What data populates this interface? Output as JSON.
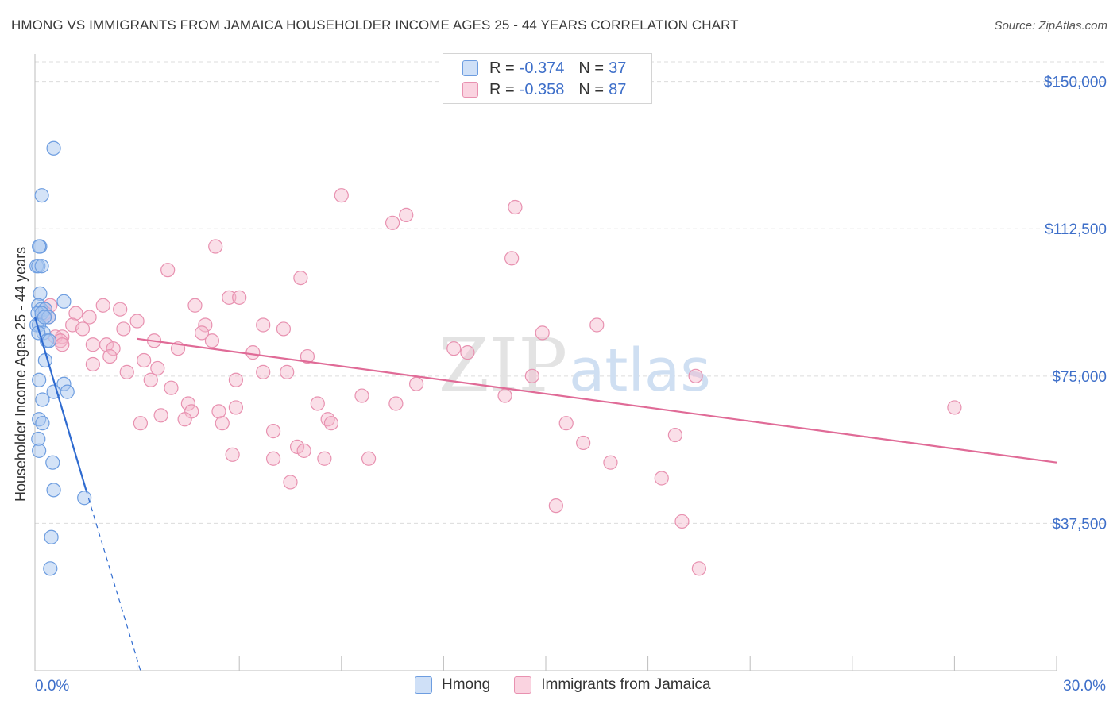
{
  "header": {
    "title": "HMONG VS IMMIGRANTS FROM JAMAICA HOUSEHOLDER INCOME AGES 25 - 44 YEARS CORRELATION CHART",
    "source": "Source: ZipAtlas.com"
  },
  "legend": {
    "rows": [
      {
        "r_label": "R =",
        "r_value": "-0.374",
        "n_label": "N =",
        "n_value": "37",
        "color": "#aac8f0"
      },
      {
        "r_label": "R =",
        "r_value": "-0.358",
        "n_label": "N =",
        "n_value": "87",
        "color": "#f5b8cc"
      }
    ],
    "bottom": [
      {
        "label": "Hmong",
        "color": "#aac8f0"
      },
      {
        "label": "Immigrants from Jamaica",
        "color": "#f5b8cc"
      }
    ]
  },
  "watermark": {
    "zip": "ZIP",
    "atlas": "atlas"
  },
  "colors": {
    "hmong_fill": "#aac8f0",
    "hmong_stroke": "#6d9de0",
    "hmong_line": "#2f6bd0",
    "jamaica_fill": "#f5b8cc",
    "jamaica_stroke": "#e891b0",
    "jamaica_line": "#e06b97",
    "axis_label": "#3e6fc9",
    "grid": "#dcdcdc"
  },
  "chart_data": {
    "type": "scatter",
    "title": "HMONG VS IMMIGRANTS FROM JAMAICA HOUSEHOLDER INCOME AGES 25 - 44 YEARS CORRELATION CHART",
    "xlabel": "",
    "ylabel": "Householder Income Ages 25 - 44 years",
    "xlim": [
      0,
      30
    ],
    "ylim": [
      0,
      157000
    ],
    "x_tick_labels": [
      {
        "value": 0,
        "label": "0.0%"
      },
      {
        "value": 30,
        "label": "30.0%"
      }
    ],
    "x_minor_ticks": [
      3,
      6,
      9,
      12,
      15,
      18,
      21,
      24,
      27,
      30
    ],
    "y_ticks": [
      {
        "value": 37500,
        "label": "$37,500"
      },
      {
        "value": 75000,
        "label": "$75,000"
      },
      {
        "value": 112500,
        "label": "$112,500"
      },
      {
        "value": 150000,
        "label": "$150,000"
      }
    ],
    "series": [
      {
        "name": "Hmong",
        "r": -0.374,
        "n": 37,
        "points": [
          [
            0.55,
            133000
          ],
          [
            0.2,
            121000
          ],
          [
            0.15,
            108000
          ],
          [
            0.12,
            108000
          ],
          [
            0.05,
            103000
          ],
          [
            0.1,
            103000
          ],
          [
            0.2,
            103000
          ],
          [
            0.15,
            96000
          ],
          [
            0.85,
            94000
          ],
          [
            0.1,
            93000
          ],
          [
            0.18,
            92000
          ],
          [
            0.3,
            92000
          ],
          [
            0.08,
            91000
          ],
          [
            0.2,
            91000
          ],
          [
            0.4,
            90000
          ],
          [
            0.05,
            88000
          ],
          [
            0.12,
            88000
          ],
          [
            0.25,
            86000
          ],
          [
            0.1,
            86000
          ],
          [
            0.35,
            84000
          ],
          [
            0.42,
            84000
          ],
          [
            0.3,
            79000
          ],
          [
            0.12,
            74000
          ],
          [
            0.85,
            73000
          ],
          [
            0.55,
            71000
          ],
          [
            0.95,
            71000
          ],
          [
            0.22,
            69000
          ],
          [
            0.12,
            64000
          ],
          [
            0.22,
            63000
          ],
          [
            0.1,
            59000
          ],
          [
            0.12,
            56000
          ],
          [
            0.52,
            53000
          ],
          [
            0.55,
            46000
          ],
          [
            1.45,
            44000
          ],
          [
            0.48,
            34000
          ],
          [
            0.45,
            26000
          ],
          [
            0.28,
            90000
          ]
        ],
        "trend": {
          "x0": 0.0,
          "y0": 90000,
          "x1": 1.5,
          "y1": 46000,
          "dash_x1": 3.1,
          "dash_y1": 0
        }
      },
      {
        "name": "Immigrants from Jamaica",
        "r": -0.358,
        "n": 87,
        "points": [
          [
            9.0,
            121000
          ],
          [
            14.1,
            118000
          ],
          [
            10.9,
            116000
          ],
          [
            10.5,
            114000
          ],
          [
            5.3,
            108000
          ],
          [
            14.0,
            105000
          ],
          [
            3.9,
            102000
          ],
          [
            7.8,
            100000
          ],
          [
            5.7,
            95000
          ],
          [
            6.0,
            95000
          ],
          [
            4.7,
            93000
          ],
          [
            2.0,
            93000
          ],
          [
            0.45,
            93000
          ],
          [
            0.3,
            92000
          ],
          [
            2.5,
            92000
          ],
          [
            1.2,
            91000
          ],
          [
            0.3,
            91000
          ],
          [
            0.4,
            90000
          ],
          [
            1.6,
            90000
          ],
          [
            3.0,
            89000
          ],
          [
            6.7,
            88000
          ],
          [
            5.0,
            88000
          ],
          [
            1.1,
            88000
          ],
          [
            1.4,
            87000
          ],
          [
            16.5,
            88000
          ],
          [
            7.3,
            87000
          ],
          [
            2.6,
            87000
          ],
          [
            14.9,
            86000
          ],
          [
            4.9,
            86000
          ],
          [
            0.6,
            85000
          ],
          [
            0.8,
            85000
          ],
          [
            5.2,
            84000
          ],
          [
            0.75,
            84000
          ],
          [
            3.5,
            84000
          ],
          [
            0.8,
            83000
          ],
          [
            2.1,
            83000
          ],
          [
            1.7,
            83000
          ],
          [
            4.2,
            82000
          ],
          [
            2.3,
            82000
          ],
          [
            12.3,
            82000
          ],
          [
            12.7,
            81000
          ],
          [
            6.4,
            81000
          ],
          [
            2.2,
            80000
          ],
          [
            8.0,
            80000
          ],
          [
            3.2,
            79000
          ],
          [
            1.7,
            78000
          ],
          [
            3.6,
            77000
          ],
          [
            7.4,
            76000
          ],
          [
            2.7,
            76000
          ],
          [
            6.7,
            76000
          ],
          [
            14.6,
            75000
          ],
          [
            19.4,
            75000
          ],
          [
            3.4,
            74000
          ],
          [
            5.9,
            74000
          ],
          [
            11.2,
            73000
          ],
          [
            4.0,
            72000
          ],
          [
            9.6,
            70000
          ],
          [
            13.8,
            70000
          ],
          [
            8.3,
            68000
          ],
          [
            4.5,
            68000
          ],
          [
            10.6,
            68000
          ],
          [
            5.9,
            67000
          ],
          [
            4.6,
            66000
          ],
          [
            5.4,
            66000
          ],
          [
            3.7,
            65000
          ],
          [
            4.4,
            64000
          ],
          [
            8.6,
            64000
          ],
          [
            3.1,
            63000
          ],
          [
            5.5,
            63000
          ],
          [
            8.7,
            63000
          ],
          [
            15.6,
            63000
          ],
          [
            27.0,
            67000
          ],
          [
            7.0,
            61000
          ],
          [
            18.8,
            60000
          ],
          [
            16.1,
            58000
          ],
          [
            7.7,
            57000
          ],
          [
            7.9,
            56000
          ],
          [
            5.8,
            55000
          ],
          [
            7.0,
            54000
          ],
          [
            8.5,
            54000
          ],
          [
            9.8,
            54000
          ],
          [
            16.9,
            53000
          ],
          [
            18.4,
            49000
          ],
          [
            7.5,
            48000
          ],
          [
            15.3,
            42000
          ],
          [
            19.0,
            38000
          ],
          [
            19.5,
            26000
          ]
        ],
        "trend": {
          "x0": 3.0,
          "y0": 84500,
          "x1": 30.0,
          "y1": 53000
        }
      }
    ]
  }
}
